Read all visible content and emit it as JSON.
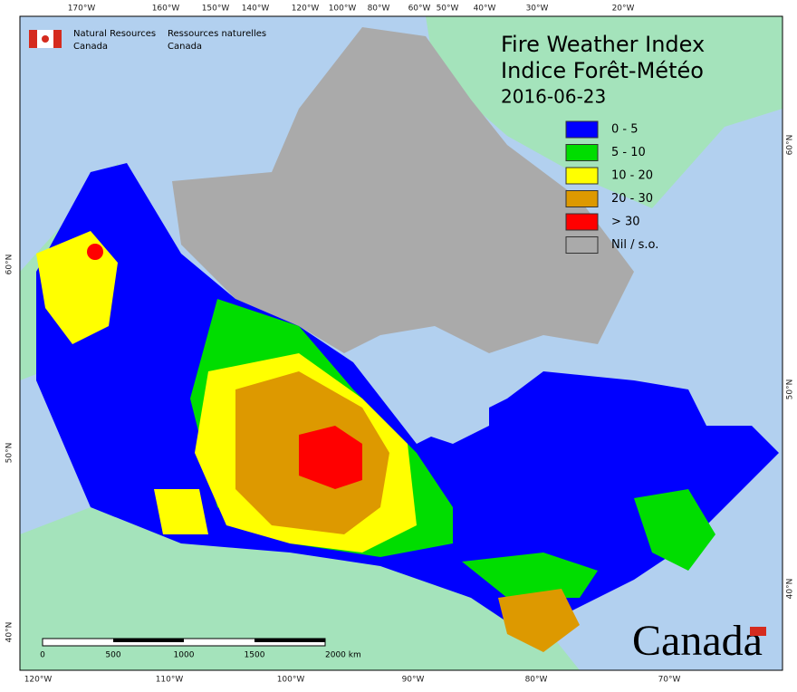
{
  "header": {
    "agency_en": [
      "Natural Resources",
      "Canada"
    ],
    "agency_fr": [
      "Ressources naturelles",
      "Canada"
    ]
  },
  "title": [
    "Fire Weather Index",
    "Indice Forêt-Météo"
  ],
  "date": "2016-06-23",
  "legend": [
    {
      "label": "0 - 5",
      "color": "#0000ff"
    },
    {
      "label": "5 - 10",
      "color": "#00dd00"
    },
    {
      "label": "10 - 20",
      "color": "#ffff00"
    },
    {
      "label": "20 - 30",
      "color": "#dd9900"
    },
    {
      "label": "> 30",
      "color": "#ff0000"
    },
    {
      "label": "Nil / s.o.",
      "color": "#aaaaaa"
    }
  ],
  "graticule": {
    "top": [
      "170°W",
      "160°W",
      "150°W",
      "140°W",
      "120°W",
      "100°W",
      "80°W",
      "60°W",
      "50°W",
      "40°W",
      "30°W",
      "20°W"
    ],
    "bottom": [
      "120°W",
      "110°W",
      "100°W",
      "90°W",
      "80°W",
      "70°W"
    ],
    "left": [
      "60°N",
      "50°N",
      "40°N"
    ],
    "right": [
      "60°N",
      "50°N",
      "40°N"
    ]
  },
  "scale_bar": [
    "0",
    "500",
    "1000",
    "1500",
    "2000 km"
  ],
  "wordmark": "Canada"
}
